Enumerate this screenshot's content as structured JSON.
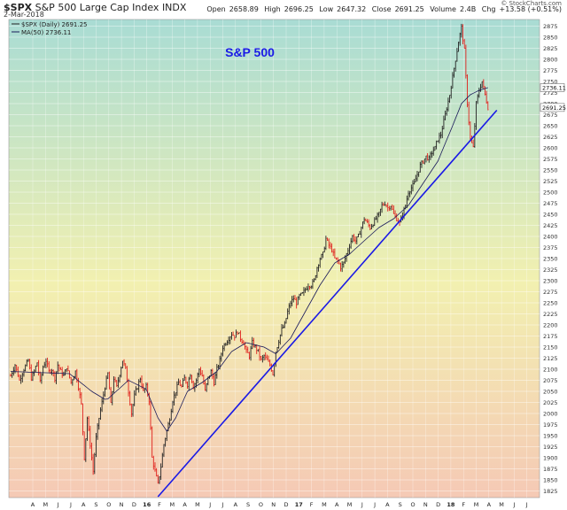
{
  "header": {
    "symbol": "$SPX",
    "name": "S&P 500 Large Cap Index",
    "exchange": "INDX",
    "date": "2-Mar-2018",
    "open_label": "Open",
    "open": "2658.89",
    "high_label": "High",
    "high": "2696.25",
    "low_label": "Low",
    "low": "2647.32",
    "close_label": "Close",
    "close": "2691.25",
    "volume_label": "Volume",
    "volume": "2.4B",
    "chg_label": "Chg",
    "chg": "+13.58 (+0.51%)",
    "brand": "© StockCharts.com"
  },
  "legend": {
    "price": "$SPX (Daily) 2691.25",
    "ma": "MA(50) 2736.11"
  },
  "annotation": "S&P 500",
  "colors": {
    "up": "#222222",
    "down": "#e0201c",
    "ma": "#1a1a5a",
    "trendline": "#1a1ae6",
    "annotation": "#1a1ae6",
    "bg_top": "#a9dcd4",
    "bg_mid": "#f2f0b0",
    "bg_bot": "#f5c9b5"
  },
  "chart_data": {
    "type": "line",
    "title": "S&P 500",
    "ylim": [
      1810,
      2890
    ],
    "y_ticks": [
      1825,
      1850,
      1875,
      1900,
      1925,
      1950,
      1975,
      2000,
      2025,
      2050,
      2075,
      2100,
      2125,
      2150,
      2175,
      2200,
      2225,
      2250,
      2275,
      2300,
      2325,
      2350,
      2375,
      2400,
      2425,
      2450,
      2475,
      2500,
      2525,
      2550,
      2575,
      2600,
      2625,
      2650,
      2675,
      2700,
      2725,
      2750,
      2775,
      2800,
      2825,
      2850,
      2875
    ],
    "x_labels": [
      "A",
      "M",
      "J",
      "J",
      "A",
      "S",
      "O",
      "N",
      "D",
      "16",
      "F",
      "M",
      "A",
      "M",
      "J",
      "J",
      "A",
      "S",
      "O",
      "N",
      "D",
      "17",
      "F",
      "M",
      "A",
      "M",
      "J",
      "J",
      "A",
      "S",
      "O",
      "N",
      "D",
      "18",
      "F",
      "M",
      "A",
      "M",
      "J",
      "J"
    ],
    "price_anchors": [
      [
        0,
        2085
      ],
      [
        3,
        2110
      ],
      [
        6,
        2075
      ],
      [
        9,
        2100
      ],
      [
        12,
        2120
      ],
      [
        14,
        2080
      ],
      [
        16,
        2095
      ],
      [
        18,
        2115
      ],
      [
        20,
        2070
      ],
      [
        22,
        2105
      ],
      [
        24,
        2120
      ],
      [
        26,
        2095
      ],
      [
        28,
        2100
      ],
      [
        30,
        2080
      ],
      [
        32,
        2110
      ],
      [
        34,
        2095
      ],
      [
        36,
        2085
      ],
      [
        38,
        2105
      ],
      [
        41,
        2070
      ],
      [
        44,
        2095
      ],
      [
        46,
        2060
      ],
      [
        48,
        2020
      ],
      [
        50,
        1900
      ],
      [
        52,
        1990
      ],
      [
        54,
        1930
      ],
      [
        56,
        1870
      ],
      [
        58,
        1945
      ],
      [
        60,
        1990
      ],
      [
        62,
        2025
      ],
      [
        64,
        2060
      ],
      [
        66,
        2090
      ],
      [
        68,
        2020
      ],
      [
        70,
        2080
      ],
      [
        72,
        2060
      ],
      [
        74,
        2090
      ],
      [
        76,
        2120
      ],
      [
        78,
        2100
      ],
      [
        80,
        2050
      ],
      [
        82,
        2000
      ],
      [
        84,
        2040
      ],
      [
        86,
        2060
      ],
      [
        88,
        2080
      ],
      [
        90,
        2050
      ],
      [
        92,
        2060
      ],
      [
        94,
        2030
      ],
      [
        96,
        1900
      ],
      [
        98,
        1870
      ],
      [
        100,
        1840
      ],
      [
        102,
        1880
      ],
      [
        104,
        1930
      ],
      [
        106,
        1960
      ],
      [
        108,
        1990
      ],
      [
        110,
        2030
      ],
      [
        112,
        2050
      ],
      [
        114,
        2070
      ],
      [
        116,
        2060
      ],
      [
        118,
        2080
      ],
      [
        120,
        2065
      ],
      [
        122,
        2090
      ],
      [
        124,
        2060
      ],
      [
        126,
        2075
      ],
      [
        128,
        2100
      ],
      [
        130,
        2085
      ],
      [
        132,
        2050
      ],
      [
        134,
        2080
      ],
      [
        136,
        2095
      ],
      [
        138,
        2070
      ],
      [
        140,
        2100
      ],
      [
        142,
        2120
      ],
      [
        144,
        2150
      ],
      [
        146,
        2160
      ],
      [
        148,
        2170
      ],
      [
        150,
        2180
      ],
      [
        152,
        2175
      ],
      [
        154,
        2185
      ],
      [
        156,
        2170
      ],
      [
        158,
        2160
      ],
      [
        160,
        2140
      ],
      [
        162,
        2130
      ],
      [
        164,
        2160
      ],
      [
        166,
        2150
      ],
      [
        168,
        2140
      ],
      [
        170,
        2120
      ],
      [
        172,
        2130
      ],
      [
        174,
        2120
      ],
      [
        176,
        2110
      ],
      [
        178,
        2090
      ],
      [
        180,
        2140
      ],
      [
        182,
        2165
      ],
      [
        184,
        2190
      ],
      [
        186,
        2200
      ],
      [
        188,
        2230
      ],
      [
        190,
        2250
      ],
      [
        192,
        2260
      ],
      [
        194,
        2250
      ],
      [
        196,
        2265
      ],
      [
        198,
        2270
      ],
      [
        200,
        2280
      ],
      [
        202,
        2290
      ],
      [
        204,
        2290
      ],
      [
        206,
        2300
      ],
      [
        208,
        2330
      ],
      [
        210,
        2350
      ],
      [
        212,
        2360
      ],
      [
        214,
        2395
      ],
      [
        216,
        2380
      ],
      [
        218,
        2370
      ],
      [
        220,
        2350
      ],
      [
        222,
        2345
      ],
      [
        224,
        2330
      ],
      [
        226,
        2340
      ],
      [
        228,
        2360
      ],
      [
        230,
        2380
      ],
      [
        232,
        2400
      ],
      [
        234,
        2390
      ],
      [
        236,
        2400
      ],
      [
        238,
        2420
      ],
      [
        240,
        2440
      ],
      [
        242,
        2430
      ],
      [
        244,
        2420
      ],
      [
        246,
        2430
      ],
      [
        248,
        2440
      ],
      [
        250,
        2450
      ],
      [
        252,
        2470
      ],
      [
        254,
        2475
      ],
      [
        256,
        2465
      ],
      [
        258,
        2470
      ],
      [
        260,
        2450
      ],
      [
        262,
        2440
      ],
      [
        264,
        2430
      ],
      [
        266,
        2450
      ],
      [
        268,
        2470
      ],
      [
        270,
        2500
      ],
      [
        272,
        2510
      ],
      [
        274,
        2520
      ],
      [
        276,
        2540
      ],
      [
        278,
        2560
      ],
      [
        280,
        2570
      ],
      [
        282,
        2580
      ],
      [
        284,
        2575
      ],
      [
        286,
        2590
      ],
      [
        288,
        2600
      ],
      [
        290,
        2620
      ],
      [
        292,
        2630
      ],
      [
        294,
        2660
      ],
      [
        296,
        2690
      ],
      [
        298,
        2720
      ],
      [
        300,
        2760
      ],
      [
        302,
        2800
      ],
      [
        304,
        2840
      ],
      [
        306,
        2872
      ],
      [
        308,
        2820
      ],
      [
        310,
        2700
      ],
      [
        312,
        2620
      ],
      [
        314,
        2600
      ],
      [
        316,
        2700
      ],
      [
        318,
        2730
      ],
      [
        320,
        2750
      ],
      [
        322,
        2720
      ],
      [
        324,
        2691
      ]
    ],
    "ma_anchors": [
      [
        0,
        2095
      ],
      [
        40,
        2090
      ],
      [
        55,
        2050
      ],
      [
        65,
        2030
      ],
      [
        80,
        2075
      ],
      [
        92,
        2055
      ],
      [
        100,
        1990
      ],
      [
        106,
        1960
      ],
      [
        112,
        1990
      ],
      [
        120,
        2050
      ],
      [
        130,
        2070
      ],
      [
        140,
        2095
      ],
      [
        150,
        2140
      ],
      [
        160,
        2160
      ],
      [
        172,
        2150
      ],
      [
        180,
        2135
      ],
      [
        190,
        2170
      ],
      [
        200,
        2230
      ],
      [
        210,
        2290
      ],
      [
        220,
        2340
      ],
      [
        230,
        2360
      ],
      [
        240,
        2390
      ],
      [
        250,
        2420
      ],
      [
        260,
        2440
      ],
      [
        270,
        2470
      ],
      [
        280,
        2520
      ],
      [
        290,
        2570
      ],
      [
        300,
        2650
      ],
      [
        306,
        2700
      ],
      [
        312,
        2720
      ],
      [
        318,
        2730
      ],
      [
        324,
        2736
      ]
    ],
    "n_days": 325,
    "trendline": {
      "start": [
        100,
        1812
      ],
      "end": [
        330,
        2685
      ]
    },
    "series": [
      {
        "name": "$SPX (Daily) 2691.25"
      },
      {
        "name": "MA(50) 2736.11"
      }
    ],
    "last_value_tags": [
      2736.11,
      2691.25
    ],
    "grid": true
  }
}
